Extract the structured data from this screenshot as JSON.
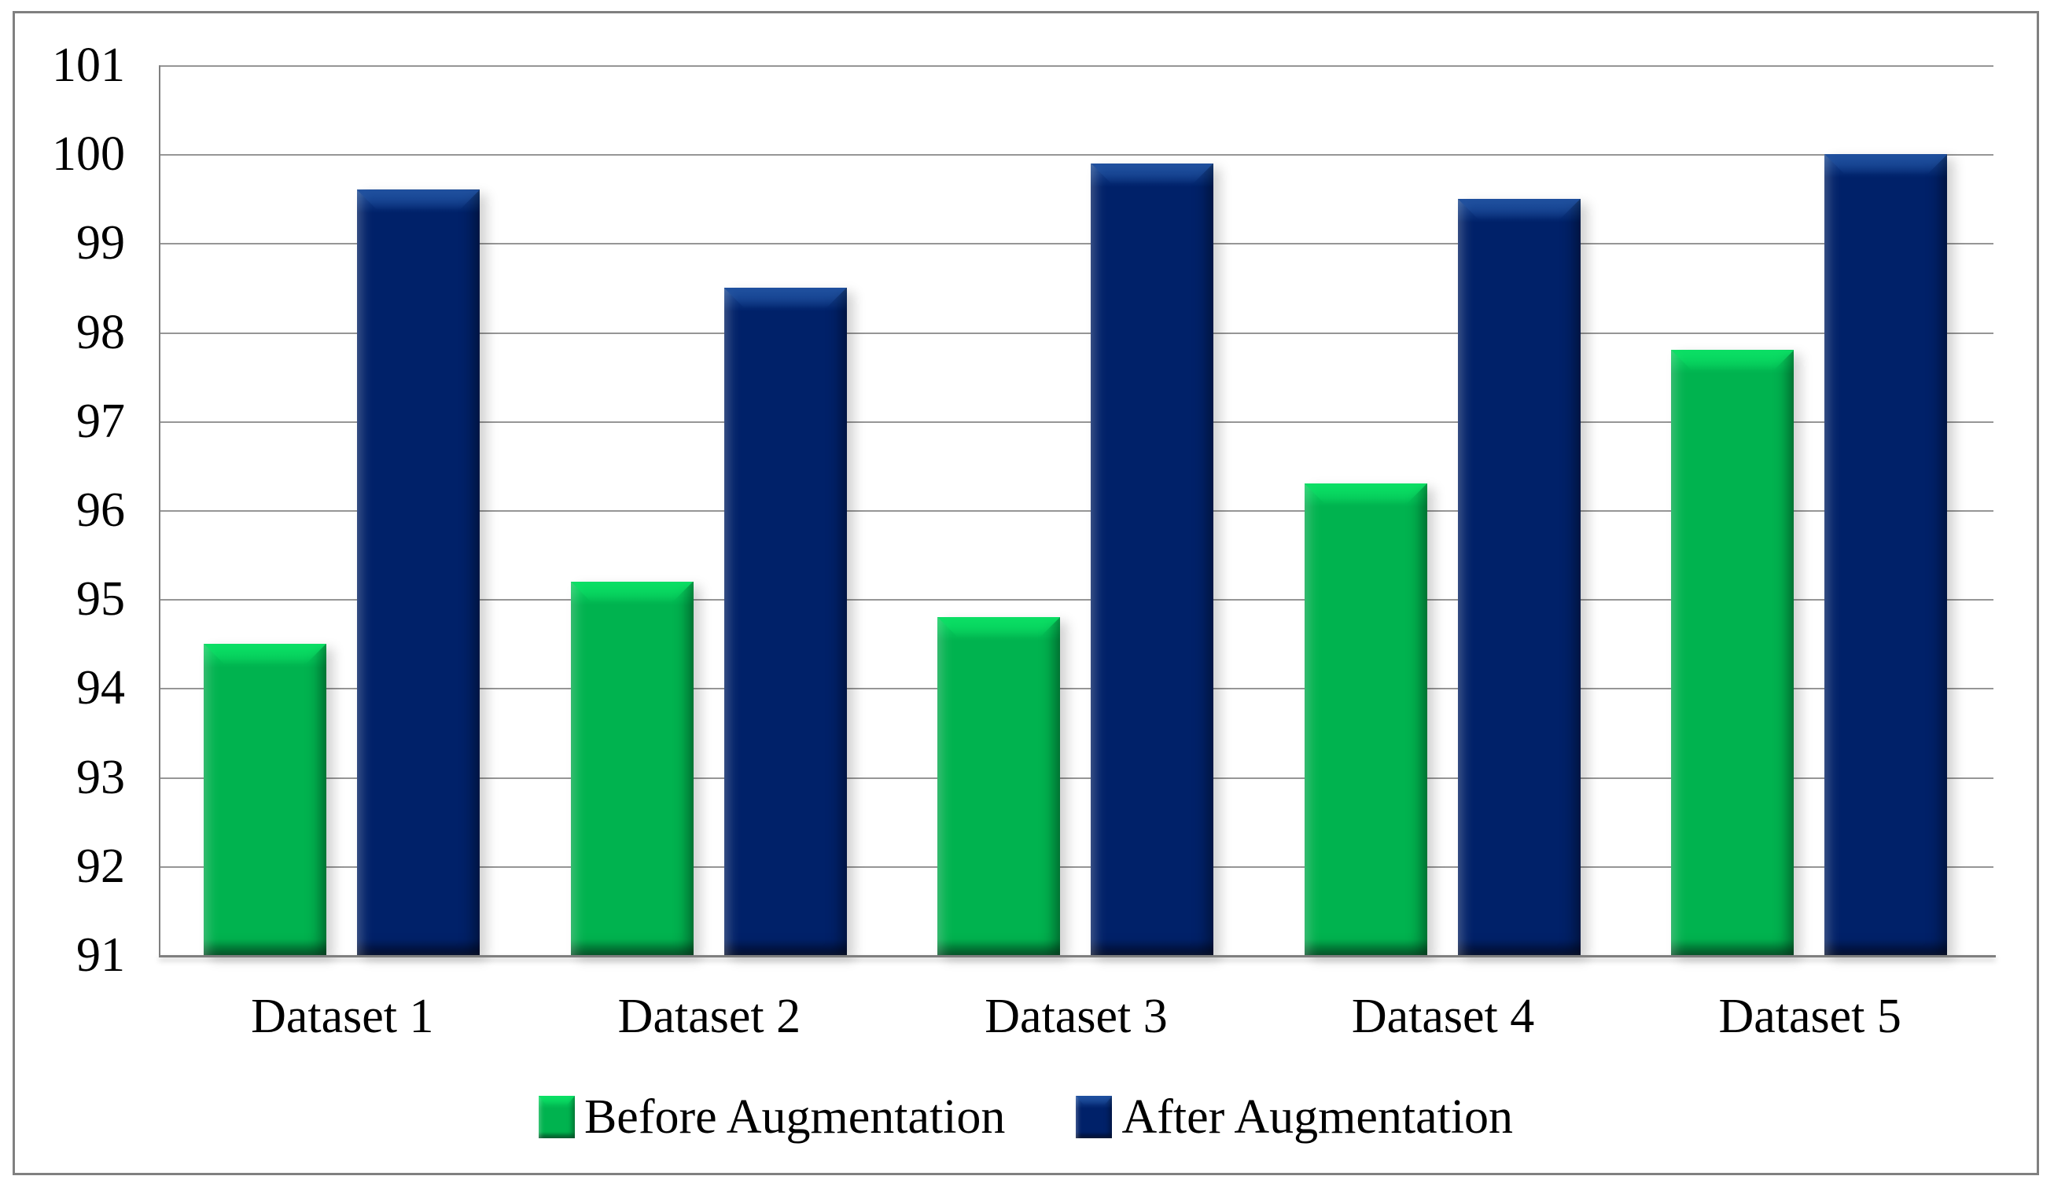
{
  "figure": {
    "background": "#ffffff",
    "border_color": "#808080"
  },
  "chart_data": {
    "type": "bar",
    "title": "",
    "xlabel": "",
    "ylabel": "",
    "categories": [
      "Dataset 1",
      "Dataset 2",
      "Dataset 3",
      "Dataset 4",
      "Dataset 5"
    ],
    "series": [
      {
        "name": "Before Augmentation",
        "color": "#00B34F",
        "highlight_color": "#0ADF64",
        "shadow_color": "#007A38",
        "values": [
          94.5,
          95.2,
          94.8,
          96.3,
          97.8
        ]
      },
      {
        "name": "After Augmentation",
        "color": "#002169",
        "highlight_color": "#1E4F9E",
        "shadow_color": "#001443",
        "values": [
          99.6,
          98.5,
          99.9,
          99.5,
          100
        ]
      }
    ],
    "ylim": [
      91,
      101
    ],
    "yticks": [
      "91",
      "92",
      "93",
      "94",
      "95",
      "96",
      "97",
      "98",
      "99",
      "100",
      "101"
    ],
    "grid": "horizontal-major",
    "gridline_color": "#969696",
    "axis_color": "#7f7f7f",
    "text_color": "#000000",
    "legend_position": "bottom"
  }
}
